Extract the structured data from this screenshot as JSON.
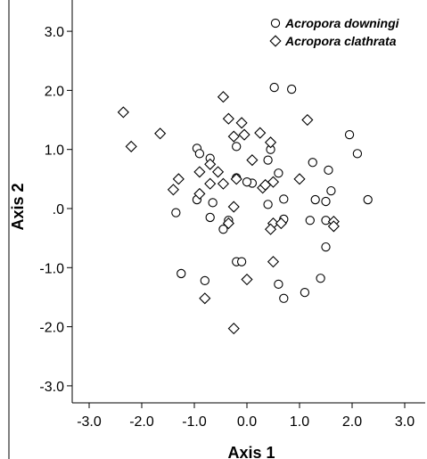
{
  "chart_data": {
    "type": "scatter",
    "title": "",
    "xlabel": "Axis 1",
    "ylabel": "Axis 2",
    "xlim": [
      -3.3,
      3.3
    ],
    "ylim": [
      -3.3,
      3.2
    ],
    "x_ticks": [
      -3.0,
      -2.0,
      -1.0,
      0.0,
      1.0,
      2.0,
      3.0
    ],
    "x_tick_labels": [
      "-3.0",
      "-2.0",
      "-1.0",
      "0.0",
      "1.0",
      "2.0",
      "3.0"
    ],
    "y_ticks": [
      3.0,
      2.0,
      1.0,
      0.0,
      -1.0,
      -2.0,
      -3.0
    ],
    "y_tick_labels": [
      "3.0",
      "2.0",
      "1.0",
      ".0",
      "-1.0",
      "-2.0",
      "-3.0"
    ],
    "grid": false,
    "legend_position": "top-right",
    "series": [
      {
        "name": "Acropora downingi",
        "marker": "circle",
        "color": "#000000",
        "points": [
          [
            0.52,
            2.05
          ],
          [
            0.85,
            2.02
          ],
          [
            1.95,
            1.25
          ],
          [
            2.1,
            0.93
          ],
          [
            0.45,
            1.0
          ],
          [
            0.6,
            0.6
          ],
          [
            1.25,
            0.78
          ],
          [
            1.55,
            0.65
          ],
          [
            1.6,
            0.3
          ],
          [
            1.3,
            0.15
          ],
          [
            2.3,
            0.15
          ],
          [
            1.5,
            0.12
          ],
          [
            0.4,
            0.07
          ],
          [
            1.2,
            -0.2
          ],
          [
            1.5,
            -0.2
          ],
          [
            1.5,
            -0.65
          ],
          [
            1.4,
            -1.18
          ],
          [
            1.1,
            -1.42
          ],
          [
            0.6,
            -1.28
          ],
          [
            0.7,
            -1.52
          ],
          [
            0.7,
            -0.18
          ],
          [
            0.7,
            0.16
          ],
          [
            0.4,
            0.82
          ],
          [
            0.1,
            0.43
          ],
          [
            0.0,
            0.45
          ],
          [
            -0.2,
            0.52
          ],
          [
            -0.2,
            1.05
          ],
          [
            -0.95,
            1.02
          ],
          [
            -0.9,
            0.93
          ],
          [
            -0.7,
            0.85
          ],
          [
            -0.65,
            0.1
          ],
          [
            -0.7,
            -0.15
          ],
          [
            -0.45,
            -0.35
          ],
          [
            -0.35,
            -0.2
          ],
          [
            -0.95,
            0.15
          ],
          [
            -1.35,
            -0.07
          ],
          [
            -1.25,
            -1.1
          ],
          [
            -0.8,
            -1.22
          ],
          [
            -0.2,
            -0.9
          ],
          [
            -0.1,
            -0.9
          ]
        ]
      },
      {
        "name": "Acropora clathrata",
        "marker": "diamond",
        "color": "#000000",
        "points": [
          [
            -2.35,
            1.63
          ],
          [
            -2.2,
            1.05
          ],
          [
            -1.65,
            1.27
          ],
          [
            -0.45,
            1.89
          ],
          [
            -0.35,
            1.52
          ],
          [
            -0.1,
            1.45
          ],
          [
            -0.25,
            1.22
          ],
          [
            -0.05,
            1.25
          ],
          [
            0.25,
            1.28
          ],
          [
            0.45,
            1.12
          ],
          [
            1.15,
            1.5
          ],
          [
            1.0,
            0.5
          ],
          [
            0.1,
            0.82
          ],
          [
            -0.7,
            0.75
          ],
          [
            -0.55,
            0.62
          ],
          [
            -0.9,
            0.62
          ],
          [
            -1.3,
            0.5
          ],
          [
            -1.4,
            0.32
          ],
          [
            -0.9,
            0.25
          ],
          [
            -0.7,
            0.42
          ],
          [
            -0.45,
            0.42
          ],
          [
            -0.2,
            0.5
          ],
          [
            0.3,
            0.35
          ],
          [
            0.35,
            0.4
          ],
          [
            0.5,
            0.45
          ],
          [
            0.5,
            -0.25
          ],
          [
            0.45,
            -0.35
          ],
          [
            0.65,
            -0.25
          ],
          [
            1.65,
            -0.22
          ],
          [
            1.65,
            -0.3
          ],
          [
            -0.35,
            -0.25
          ],
          [
            -0.25,
            0.03
          ],
          [
            0.5,
            -0.9
          ],
          [
            0.0,
            -1.2
          ],
          [
            -0.8,
            -1.52
          ],
          [
            -0.25,
            -2.03
          ]
        ]
      }
    ]
  }
}
